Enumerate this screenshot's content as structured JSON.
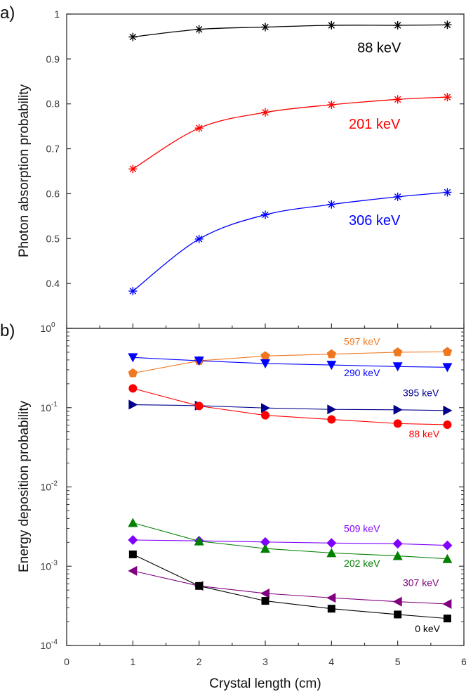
{
  "chart_data": [
    {
      "type": "line",
      "panel_label": "a)",
      "title": "",
      "xlabel": "Crystal length (cm)",
      "ylabel": "Photon absorption probability",
      "xlim": [
        0,
        6
      ],
      "ylim": [
        0.3,
        1.0
      ],
      "yscale": "linear",
      "yticks": [
        0.4,
        0.5,
        0.6,
        0.7,
        0.8,
        0.9,
        1
      ],
      "ytick_labels": [
        "0.4",
        "0.5",
        "0.6",
        "0.7",
        "0.8",
        "0.9",
        "1"
      ],
      "x": [
        1,
        2,
        3,
        4,
        5,
        5.75
      ],
      "series": [
        {
          "name": "88 keV",
          "color": "#000000",
          "marker": "asterisk",
          "smooth": true,
          "values": [
            0.949,
            0.966,
            0.971,
            0.975,
            0.975,
            0.976
          ],
          "label_pos": [
            4.72,
            0.915
          ]
        },
        {
          "name": "201 keV",
          "color": "#ff0000",
          "marker": "asterisk",
          "smooth": true,
          "values": [
            0.655,
            0.746,
            0.781,
            0.798,
            0.81,
            0.815
          ],
          "label_pos": [
            4.65,
            0.745
          ]
        },
        {
          "name": "306 keV",
          "color": "#0000ff",
          "marker": "asterisk",
          "smooth": true,
          "values": [
            0.383,
            0.499,
            0.553,
            0.576,
            0.593,
            0.603
          ],
          "label_pos": [
            4.65,
            0.53
          ]
        }
      ]
    },
    {
      "type": "line",
      "panel_label": "b)",
      "title": "",
      "xlabel": "Crystal length (cm)",
      "ylabel": "Energy deposition probability",
      "xlim": [
        0,
        6
      ],
      "ylim": [
        0.0001,
        1
      ],
      "yscale": "log",
      "xticks": [
        0,
        1,
        2,
        3,
        4,
        5,
        6
      ],
      "xtick_labels": [
        "0",
        "1",
        "2",
        "3",
        "4",
        "5",
        "6"
      ],
      "yticks": [
        0.0001,
        0.001,
        0.01,
        0.1,
        1
      ],
      "ytick_labels": [
        {
          "base": "10",
          "exp": "-4"
        },
        {
          "base": "10",
          "exp": "-3"
        },
        {
          "base": "10",
          "exp": "-2"
        },
        {
          "base": "10",
          "exp": "-1"
        },
        {
          "base": "10",
          "exp": "0"
        }
      ],
      "x": [
        1,
        2,
        3,
        4,
        5,
        5.75
      ],
      "series": [
        {
          "name": "597 keV",
          "color": "#f07820",
          "marker": "pentagon",
          "values": [
            0.272,
            0.39,
            0.448,
            0.473,
            0.5,
            0.506
          ],
          "label_pos": [
            4.46,
            0.62
          ]
        },
        {
          "name": "290 keV",
          "color": "#0000ff",
          "marker": "triangle-down",
          "values": [
            0.43,
            0.39,
            0.36,
            0.345,
            0.33,
            0.323
          ],
          "label_pos": [
            4.46,
            0.25
          ]
        },
        {
          "name": "395 keV",
          "color": "#00008b",
          "marker": "triangle-right",
          "values": [
            0.109,
            0.106,
            0.099,
            0.095,
            0.094,
            0.092
          ],
          "label_pos": [
            5.35,
            0.14
          ]
        },
        {
          "name": "88 keV",
          "color": "#ff0000",
          "marker": "circle",
          "values": [
            0.175,
            0.105,
            0.08,
            0.071,
            0.063,
            0.061
          ],
          "label_pos": [
            5.4,
            0.042
          ]
        },
        {
          "name": "509 keV",
          "color": "#8000ff",
          "marker": "diamond",
          "values": [
            0.00214,
            0.00209,
            0.00202,
            0.00196,
            0.00192,
            0.00183
          ],
          "label_pos": [
            4.46,
            0.0027
          ]
        },
        {
          "name": "202 keV",
          "color": "#008000",
          "marker": "triangle-up",
          "values": [
            0.00353,
            0.00207,
            0.00167,
            0.00147,
            0.00135,
            0.00124
          ],
          "label_pos": [
            4.46,
            0.00098
          ]
        },
        {
          "name": "307 keV",
          "color": "#800080",
          "marker": "triangle-left",
          "values": [
            0.000873,
            0.000564,
            0.000454,
            0.000399,
            0.000357,
            0.000334
          ],
          "label_pos": [
            5.35,
            0.00056
          ]
        },
        {
          "name": "0 keV",
          "color": "#000000",
          "marker": "square",
          "values": [
            0.00141,
            0.000564,
            0.000365,
            0.000291,
            0.000246,
            0.000219
          ],
          "label_pos": [
            5.45,
            0.000148
          ]
        }
      ]
    }
  ]
}
